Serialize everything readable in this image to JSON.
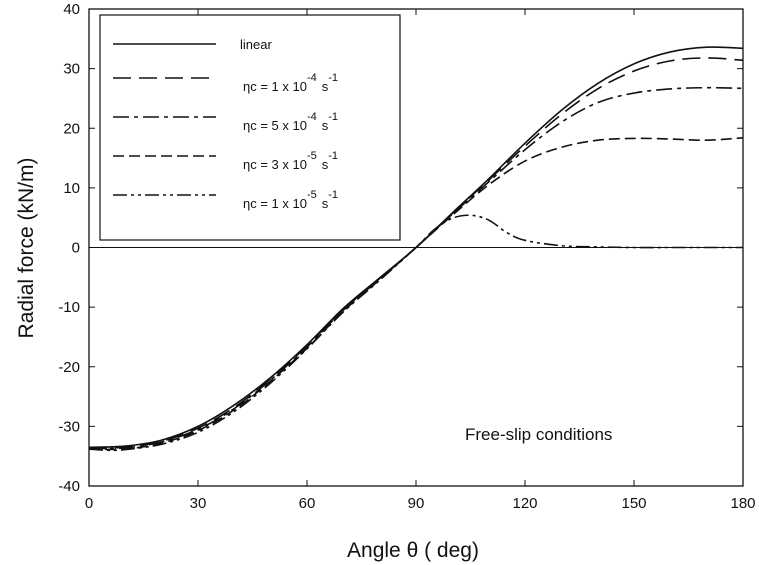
{
  "chart_data": {
    "type": "line",
    "xlabel": "Angle θ ( deg)",
    "ylabel": "Radial force (kN/m)",
    "xlim": [
      0,
      180
    ],
    "ylim": [
      -40,
      40
    ],
    "xticks": [
      0,
      30,
      60,
      90,
      120,
      150,
      180
    ],
    "yticks": [
      -40,
      -30,
      -20,
      -10,
      0,
      10,
      20,
      30,
      40
    ],
    "grid": false,
    "zero_line": true,
    "legend_position": "top-left",
    "annotation": "Free-slip conditions",
    "series": [
      {
        "name": "linear",
        "dash": "solid",
        "x": [
          0,
          10,
          20,
          30,
          40,
          50,
          60,
          70,
          80,
          90,
          100,
          110,
          120,
          130,
          140,
          150,
          160,
          170,
          180
        ],
        "y": [
          -33.5,
          -33.3,
          -32.3,
          -30.0,
          -26.4,
          -21.8,
          -16.3,
          -10.2,
          -5.1,
          0,
          5.8,
          11.5,
          17.5,
          23.0,
          27.5,
          30.8,
          32.8,
          33.6,
          33.4
        ]
      },
      {
        "name": "ηc = 1 x 10-4 s-1",
        "label_main": "ηc = 1 x 10",
        "label_exp": "-4",
        "label_unit": "s",
        "label_unit_exp": "-1",
        "dash": "long-dash",
        "x": [
          0,
          10,
          20,
          30,
          40,
          50,
          60,
          70,
          80,
          90,
          100,
          110,
          120,
          130,
          140,
          150,
          160,
          170,
          180
        ],
        "y": [
          -33.6,
          -33.5,
          -32.5,
          -30.3,
          -26.8,
          -22.0,
          -16.5,
          -10.4,
          -5.2,
          0,
          5.7,
          11.3,
          17.0,
          22.3,
          26.6,
          29.6,
          31.3,
          31.8,
          31.4
        ]
      },
      {
        "name": "ηc = 5 x 10-4 s-1",
        "label_main": "ηc = 5 x 10",
        "label_exp": "-4",
        "label_unit": "s",
        "label_unit_exp": "-1",
        "dash": "dash-dot",
        "x": [
          0,
          10,
          20,
          30,
          40,
          50,
          60,
          70,
          80,
          90,
          100,
          110,
          120,
          130,
          140,
          150,
          160,
          170,
          180
        ],
        "y": [
          -33.7,
          -33.6,
          -32.6,
          -30.5,
          -27.0,
          -22.2,
          -16.7,
          -10.5,
          -5.3,
          0,
          5.6,
          11.0,
          16.4,
          21.0,
          24.3,
          25.9,
          26.6,
          26.8,
          26.7
        ]
      },
      {
        "name": "ηc = 3 x 10-5 s-1",
        "label_main": "ηc = 3 x 10",
        "label_exp": "-5",
        "label_unit": "s",
        "label_unit_exp": "-1",
        "dash": "short-dash",
        "x": [
          0,
          10,
          20,
          30,
          40,
          50,
          60,
          70,
          80,
          90,
          100,
          110,
          120,
          130,
          140,
          150,
          160,
          170,
          180
        ],
        "y": [
          -33.8,
          -33.8,
          -32.8,
          -30.7,
          -27.2,
          -22.4,
          -16.9,
          -10.7,
          -5.4,
          0,
          5.4,
          10.5,
          14.5,
          16.8,
          18.0,
          18.3,
          18.2,
          18.0,
          18.4
        ]
      },
      {
        "name": "ηc = 1 x 10-5 s-1",
        "label_main": "ηc = 1 x 10",
        "label_exp": "-5",
        "label_unit": "s",
        "label_unit_exp": "-1",
        "dash": "dash-dot-dot",
        "x": [
          0,
          5,
          10,
          20,
          30,
          40,
          50,
          60,
          70,
          80,
          90,
          95,
          100,
          105,
          110,
          115,
          120,
          130,
          140,
          150,
          160,
          170,
          180
        ],
        "y": [
          -33.8,
          -34.0,
          -33.9,
          -33.0,
          -31.0,
          -27.5,
          -22.7,
          -17.0,
          -10.8,
          -5.5,
          0,
          3.0,
          4.9,
          5.4,
          4.6,
          2.5,
          1.2,
          0.3,
          0.1,
          0.0,
          0.0,
          0.0,
          0.0
        ]
      }
    ]
  }
}
